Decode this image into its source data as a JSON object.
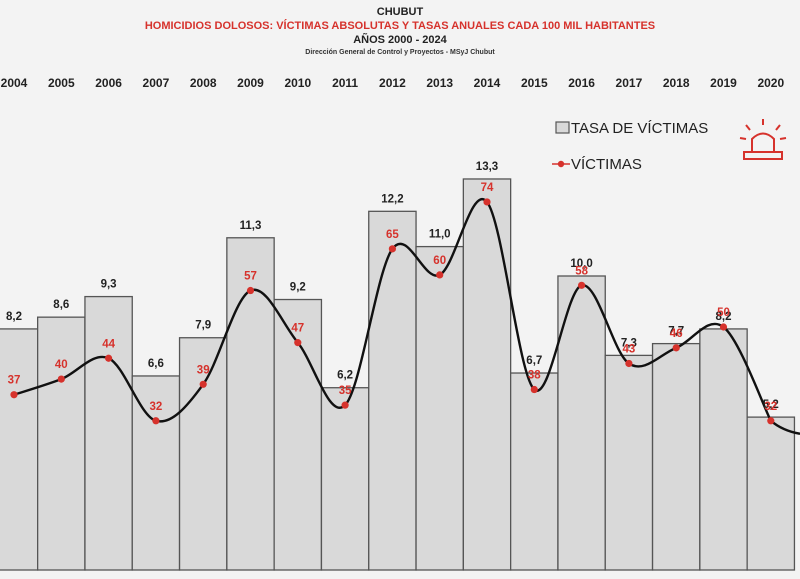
{
  "header": {
    "region": "CHUBUT",
    "title": "HOMICIDIOS DOLOSOS: VÍCTIMAS ABSOLUTAS Y TASAS ANUALES CADA 100 MIL HABITANTES",
    "period": "AÑOS 2000 - 2024",
    "source": "Dirección General de Control y Proyectos - MSyJ Chubut"
  },
  "legend": {
    "bars_label": "TASA DE VÍCTIMAS",
    "line_label": "VÍCTIMAS",
    "icon": "siren-icon"
  },
  "colors": {
    "bar_fill": "#d9d9d9",
    "bar_stroke": "#555555",
    "line": "#111111",
    "points": "#d6322c",
    "title_red": "#d6322c"
  },
  "chart_data": {
    "type": "bar",
    "categories": [
      "2004",
      "2005",
      "2006",
      "2007",
      "2008",
      "2009",
      "2010",
      "2011",
      "2012",
      "2013",
      "2014",
      "2015",
      "2016",
      "2017",
      "2018",
      "2019",
      "2020"
    ],
    "series": [
      {
        "type": "bar",
        "values": [
          8.2,
          8.6,
          9.3,
          6.6,
          7.9,
          11.3,
          9.2,
          6.2,
          12.2,
          11.0,
          13.3,
          6.7,
          10.0,
          7.3,
          7.7,
          8.2,
          5.2
        ],
        "labels": [
          "8,2",
          "8,6",
          "9,3",
          "6,6",
          "7,9",
          "11,3",
          "9,2",
          "6,2",
          "12,2",
          "11,0",
          "13,3",
          "6,7",
          "10,0",
          "7,3",
          "7,7",
          "8,2",
          "5,2"
        ]
      },
      {
        "type": "line",
        "values": [
          37,
          40,
          44,
          32,
          39,
          57,
          47,
          35,
          65,
          60,
          74,
          38,
          58,
          43,
          46,
          50,
          32
        ]
      }
    ],
    "legend_position": "top-right"
  }
}
